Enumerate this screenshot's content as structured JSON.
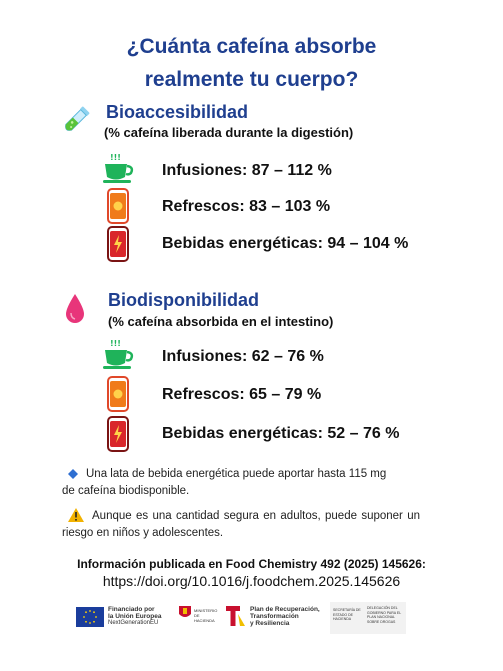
{
  "title": {
    "line1": "¿Cuánta cafeína absorbe",
    "line2": "realmente tu cuerpo?"
  },
  "bioaccesibilidad": {
    "heading": "Bioaccesibilidad",
    "subtitle": "(% cafeína liberada durante la digestión)",
    "rows": [
      {
        "icon": "tea-cup-icon",
        "label": "Infusiones: 87 – 112 %"
      },
      {
        "icon": "soda-can-icon",
        "label": "Refrescos: 83 – 103 %"
      },
      {
        "icon": "energy-can-icon",
        "label": "Bebidas energéticas: 94 – 104 %"
      }
    ]
  },
  "biodisponibilidad": {
    "heading": "Biodisponibilidad",
    "subtitle": "(% cafeína absorbida en el intestino)",
    "rows": [
      {
        "icon": "tea-cup-icon",
        "label": "Infusiones: 62 – 76 %"
      },
      {
        "icon": "soda-can-icon",
        "label": "Refrescos: 65 – 79 %"
      },
      {
        "icon": "energy-can-icon",
        "label": "Bebidas energéticas: 52 – 76 %"
      }
    ]
  },
  "notes": {
    "note1_line1": "Una lata de bebida energética puede aportar hasta 115 mg",
    "note1_line2": "de cafeína biodisponible.",
    "note2": "Aunque es una cantidad segura en adultos, puede suponer un riesgo en niños y adolescentes."
  },
  "reference": {
    "citation": "Información publicada en Food Chemistry 492 (2025) 145626:",
    "doi": "https://doi.org/10.1016/j.foodchem.2025.145626"
  },
  "logos": {
    "eu_line1": "Financiado por",
    "eu_line2": "la Unión Europea",
    "eu_line3": "NextGenerationEU",
    "ministerio": "MINISTERIO DE HACIENDA",
    "plan_line1": "Plan de Recuperación,",
    "plan_line2": "Transformación",
    "plan_line3": "y Resiliencia",
    "sec1": "SECRETARÍA DE ESTADO DE HACIENDA",
    "sec2": "DELEGACIÓN DEL GOBIERNO PARA EL PLAN NACIONAL SOBRE DROGAS"
  },
  "colors": {
    "title": "#1f3f8f",
    "tea": "#1fb35a",
    "can_orange": "#f07b1a",
    "can_red": "#d9262b",
    "drop": "#e8357a"
  }
}
